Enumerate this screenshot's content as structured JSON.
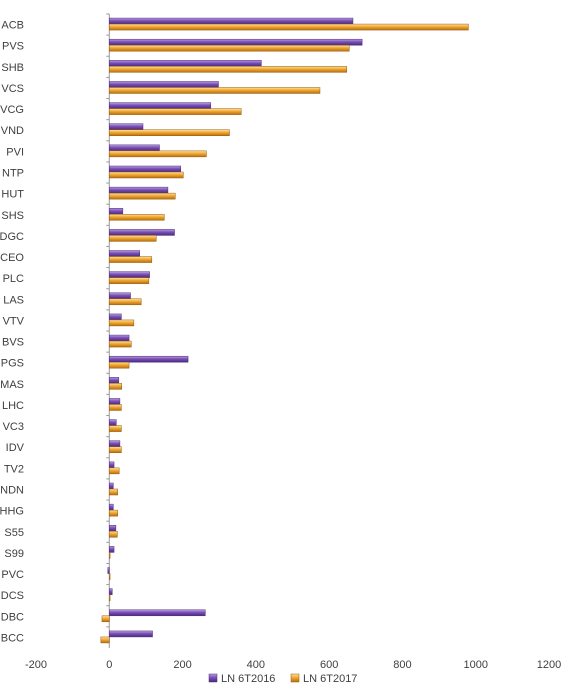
{
  "chart_data": {
    "type": "bar",
    "orientation": "horizontal",
    "categories": [
      "ACB",
      "PVS",
      "SHB",
      "VCS",
      "VCG",
      "VND",
      "PVI",
      "NTP",
      "HUT",
      "SHS",
      "DGC",
      "CEO",
      "PLC",
      "LAS",
      "VTV",
      "BVS",
      "PGS",
      "MAS",
      "LHC",
      "VC3",
      "IDV",
      "TV2",
      "NDN",
      "HHG",
      "S55",
      "S99",
      "PVC",
      "DCS",
      "DBC",
      "BCC"
    ],
    "series": [
      {
        "name": "LN 6T2016",
        "color": "#7a4fb5",
        "values": [
          665,
          690,
          415,
          298,
          277,
          92,
          137,
          195,
          160,
          37,
          178,
          83,
          110,
          58,
          33,
          54,
          215,
          26,
          29,
          19,
          29,
          13,
          11,
          11,
          18,
          13,
          -4,
          8,
          262,
          118
        ]
      },
      {
        "name": "LN 6T2017",
        "color": "#f0a830",
        "values": [
          980,
          655,
          648,
          575,
          360,
          328,
          265,
          202,
          180,
          150,
          128,
          116,
          108,
          87,
          67,
          60,
          54,
          34,
          33,
          33,
          33,
          27,
          23,
          23,
          22,
          0,
          0,
          0,
          -20,
          -23
        ]
      }
    ],
    "xlim": [
      -200,
      1200
    ],
    "xticks": [
      -200,
      0,
      200,
      400,
      600,
      800,
      1000,
      1200
    ],
    "title": "",
    "xlabel": "",
    "ylabel": "",
    "legend_position": "bottom"
  }
}
